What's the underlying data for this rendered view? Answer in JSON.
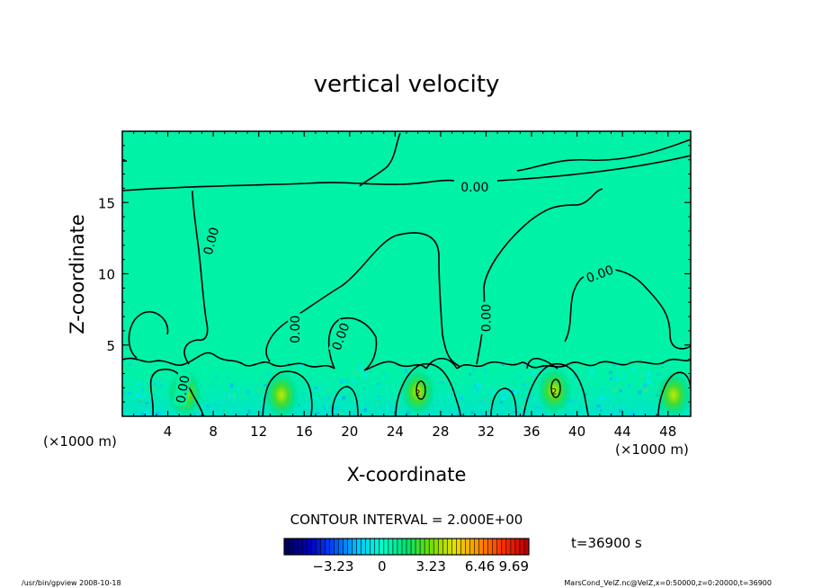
{
  "chart_data": {
    "type": "heatmap",
    "title": "vertical velocity",
    "xlabel": "X-coordinate",
    "ylabel": "Z-coordinate",
    "x_unit_left": "(×1000 m)",
    "x_unit_right": "(×1000 m)",
    "xlim": [
      0,
      50
    ],
    "ylim": [
      0,
      20
    ],
    "x_ticks": [
      4,
      8,
      12,
      16,
      20,
      24,
      28,
      32,
      36,
      40,
      44,
      48
    ],
    "y_ticks": [
      5,
      10,
      15
    ],
    "contour_interval_text": "CONTOUR INTERVAL = 2.000E+00",
    "time_text": "t=36900 s",
    "background_color": "#00f2a6",
    "colorbar": {
      "min": -6.46,
      "max": 9.69,
      "labels": [
        -3.23,
        0,
        3.23,
        6.46,
        9.69
      ],
      "label_text": [
        "−3.23",
        "0",
        "3.23",
        "6.46",
        "9.69"
      ],
      "colors": [
        "#000060",
        "#0000c0",
        "#0050ff",
        "#00c8ff",
        "#00ffc8",
        "#00e070",
        "#70e000",
        "#e8e000",
        "#ff9000",
        "#ff3000",
        "#c00000"
      ]
    },
    "contour_labels": [
      {
        "text": "0.00",
        "x": 31.0,
        "z": 16.1,
        "angle": 0
      },
      {
        "text": "0.00",
        "x": 7.8,
        "z": 12.3,
        "angle": -75
      },
      {
        "text": "0.00",
        "x": 42.0,
        "z": 10.0,
        "angle": -20
      },
      {
        "text": "0.00",
        "x": 32.0,
        "z": 6.9,
        "angle": -90
      },
      {
        "text": "0.00",
        "x": 15.2,
        "z": 6.1,
        "angle": -90
      },
      {
        "text": "0.00",
        "x": 19.2,
        "z": 5.6,
        "angle": -70
      },
      {
        "text": "0.00",
        "x": 5.3,
        "z": 1.9,
        "angle": -80
      }
    ],
    "updraft_maxima": [
      {
        "x": 5.5,
        "z": 1.6
      },
      {
        "x": 14.0,
        "z": 1.5
      },
      {
        "x": 26.0,
        "z": 1.7
      },
      {
        "x": 38.0,
        "z": 1.8
      },
      {
        "x": 48.5,
        "z": 1.5
      }
    ],
    "contour_labels_inner": [
      {
        "text": "2",
        "x": 26.0,
        "z": 1.7
      },
      {
        "text": "2",
        "x": 38.0,
        "z": 1.8
      }
    ]
  },
  "footer": {
    "left": "/usr/bin/gpview   2008-10-18",
    "right": "MarsCond_VelZ.nc@VelZ,x=0:50000,z=0:20000,t=36900"
  }
}
